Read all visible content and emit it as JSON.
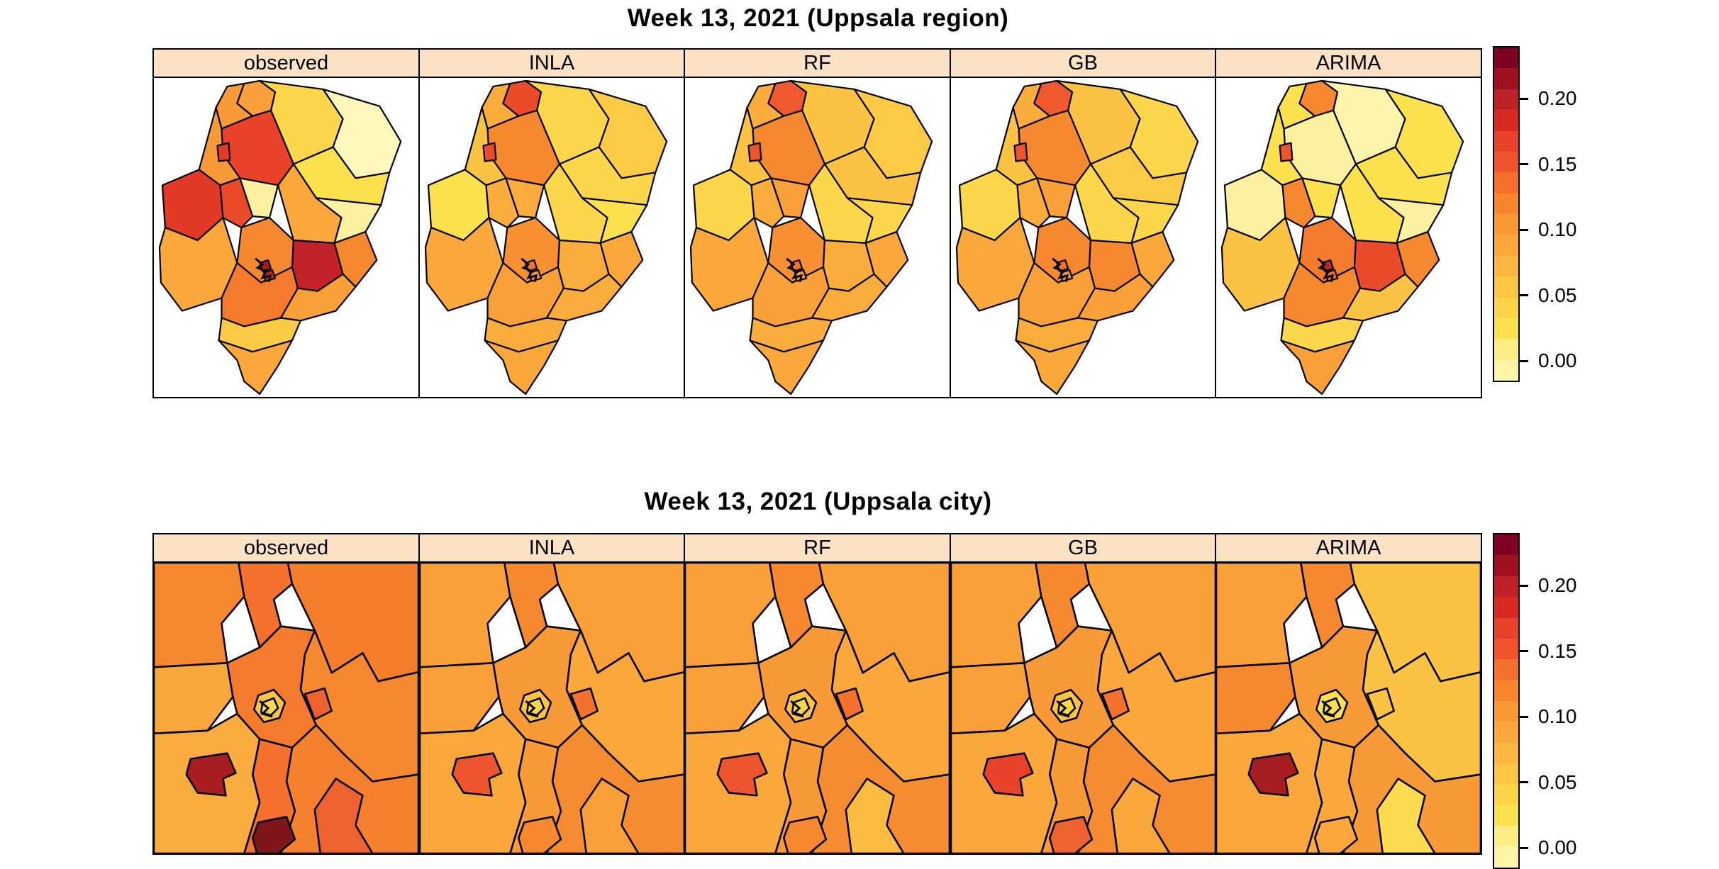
{
  "colors": {
    "strip_bg": "#fbe2c4",
    "border": "#000000",
    "background": "#ffffff"
  },
  "chart_data": {
    "type": "choropleth-small-multiples",
    "rows": [
      {
        "title": "Week 13, 2021 (Uppsala region)",
        "map": "region",
        "district_order": [
          "nw-strip",
          "north-tip",
          "ne-big",
          "ne-far",
          "ne-yellow",
          "north-center",
          "west-upper",
          "west-nub",
          "west-big",
          "center-left",
          "center-pale",
          "east-mid",
          "east-pale",
          "center-main",
          "dark-red-district",
          "east-orange",
          "sw-big",
          "south-center",
          "se-region",
          "south-strip",
          "bottom-tail",
          "city-speck-a",
          "city-speck-b"
        ],
        "panels": [
          {
            "label": "observed",
            "colors": [
              "#F89A38",
              "#F9A03C",
              "#FCD74B",
              "#FEF8BB",
              "#FCE14F",
              "#E8432A",
              "#F89A38",
              "#E23A26",
              "#E23A26",
              "#EA4A2A",
              "#FDF0A0",
              "#FAA83C",
              "#FDF0A0",
              "#F6892F",
              "#C2222A",
              "#F6892F",
              "#FAA83C",
              "#F47B2D",
              "#F9A138",
              "#FCCB46",
              "#FAA83C",
              "#A81D22",
              "#C2222A"
            ]
          },
          {
            "label": "INLA",
            "colors": [
              "#FAAD3D",
              "#EA4C2B",
              "#FCD74B",
              "#FCCB46",
              "#FCD74B",
              "#F6892F",
              "#FBC343",
              "#EA4C2B",
              "#FCE14F",
              "#FAAD3D",
              "#FAAD3D",
              "#FCD74B",
              "#FCE14F",
              "#F78F33",
              "#FAAD3D",
              "#FAA83C",
              "#FAA83C",
              "#F9A138",
              "#FAAD3D",
              "#FAAD3D",
              "#FAA83C",
              "#F4712E",
              "#F89A38"
            ]
          },
          {
            "label": "RF",
            "colors": [
              "#FAAD3D",
              "#EE5A2E",
              "#FBC343",
              "#FCCB46",
              "#FBC343",
              "#F6892F",
              "#FBC343",
              "#ED552E",
              "#FCD74B",
              "#FAAD3D",
              "#F9A138",
              "#FCD74B",
              "#FCD74B",
              "#F78F33",
              "#FAAD3D",
              "#FAA83C",
              "#FAA83C",
              "#F9A138",
              "#FAAD3D",
              "#FAAD3D",
              "#FAA83C",
              "#F4712E",
              "#F89A38"
            ]
          },
          {
            "label": "GB",
            "colors": [
              "#FAAD3D",
              "#EE5A2E",
              "#FBC343",
              "#FCD74B",
              "#FCCB46",
              "#F6892F",
              "#FBC343",
              "#ED552E",
              "#FCD74B",
              "#FAAD3D",
              "#F9A138",
              "#FCD74B",
              "#FCD74B",
              "#F6892F",
              "#F6892F",
              "#FAA83C",
              "#FAA83C",
              "#F9A138",
              "#F9A138",
              "#FAAD3D",
              "#FAA83C",
              "#F4712E",
              "#F89A38"
            ]
          },
          {
            "label": "ARIMA",
            "colors": [
              "#FCE14F",
              "#F6892F",
              "#FDF4AC",
              "#FCE14F",
              "#FCE14F",
              "#FDF0A0",
              "#FCE14F",
              "#ED552E",
              "#FDF0A0",
              "#F6892F",
              "#FCE14F",
              "#FCE14F",
              "#FDF0A0",
              "#F47B2D",
              "#EA4C2B",
              "#F6892F",
              "#FBC343",
              "#F6892F",
              "#FBC343",
              "#FCD74B",
              "#F9A138",
              "#C2222A",
              "#F4712E"
            ]
          }
        ]
      },
      {
        "title": "Week 13, 2021 (Uppsala city)",
        "map": "city",
        "district_order": [
          "top-left",
          "top-lobe",
          "top-right",
          "mid-right",
          "left-mid",
          "bottom-left",
          "bottom-right-bg",
          "center-web",
          "star-gold",
          "star-yellow-center",
          "small-patch-right",
          "bottom-center-strip",
          "dark-red-blob",
          "dark-bottom-blob",
          "bottom-right-triangle"
        ],
        "panels": [
          {
            "label": "observed",
            "colors": [
              "#F6892F",
              "#F4712E",
              "#F57E2D",
              "#F6892F",
              "#F9A83B",
              "#FAAD3E",
              "#F5802E",
              "#F47B2D",
              "#FBC343",
              "#FCDC4E",
              "#EE6230",
              "#F4712E",
              "#A81D22",
              "#7E161C",
              "#EE6230"
            ]
          },
          {
            "label": "INLA",
            "colors": [
              "#F9A138",
              "#F6892F",
              "#F9A138",
              "#FAA83C",
              "#F9A138",
              "#FAA83C",
              "#F68C31",
              "#F89A38",
              "#FBC343",
              "#FCD74B",
              "#F4712E",
              "#F89A38",
              "#ED552E",
              "#F6892F",
              "#F9A138"
            ]
          },
          {
            "label": "RF",
            "colors": [
              "#F9A138",
              "#F6892F",
              "#F9A138",
              "#FAA83C",
              "#F9A138",
              "#FAA83C",
              "#F68C31",
              "#F89A38",
              "#FBC343",
              "#FCD74B",
              "#F4712E",
              "#F89A38",
              "#ED552E",
              "#F6892F",
              "#FBBC41"
            ]
          },
          {
            "label": "GB",
            "colors": [
              "#F9A138",
              "#F6892F",
              "#F9A138",
              "#FAA83C",
              "#F9A138",
              "#FAA83C",
              "#F68C31",
              "#F89A38",
              "#FBC343",
              "#FCD74B",
              "#F4712E",
              "#F89A38",
              "#E8432A",
              "#EE6230",
              "#FAA83C"
            ]
          },
          {
            "label": "ARIMA",
            "colors": [
              "#F9A138",
              "#F6892F",
              "#FBC343",
              "#FBC343",
              "#F6892F",
              "#FAA83C",
              "#F89A38",
              "#F89A38",
              "#FCE14F",
              "#FCE14F",
              "#FBC343",
              "#FAA83C",
              "#A81D22",
              "#FAA83B",
              "#FCDC4E"
            ]
          }
        ]
      }
    ],
    "legend": {
      "tick_labels": [
        "0.20",
        "0.15",
        "0.10",
        "0.05",
        "0.00"
      ],
      "tick_values": [
        0.2,
        0.15,
        0.1,
        0.05,
        0.0
      ],
      "range": {
        "min": -0.016,
        "max": 0.24
      },
      "colors_top_to_bottom": [
        "#7E0023",
        "#9F1120",
        "#BE2126",
        "#D92923",
        "#E8432A",
        "#F0542C",
        "#F4712E",
        "#F7862F",
        "#F99A37",
        "#FAA83C",
        "#FBB741",
        "#FCC544",
        "#FDD348",
        "#FCE14F",
        "#FEEE86",
        "#FDF6A8"
      ]
    }
  }
}
